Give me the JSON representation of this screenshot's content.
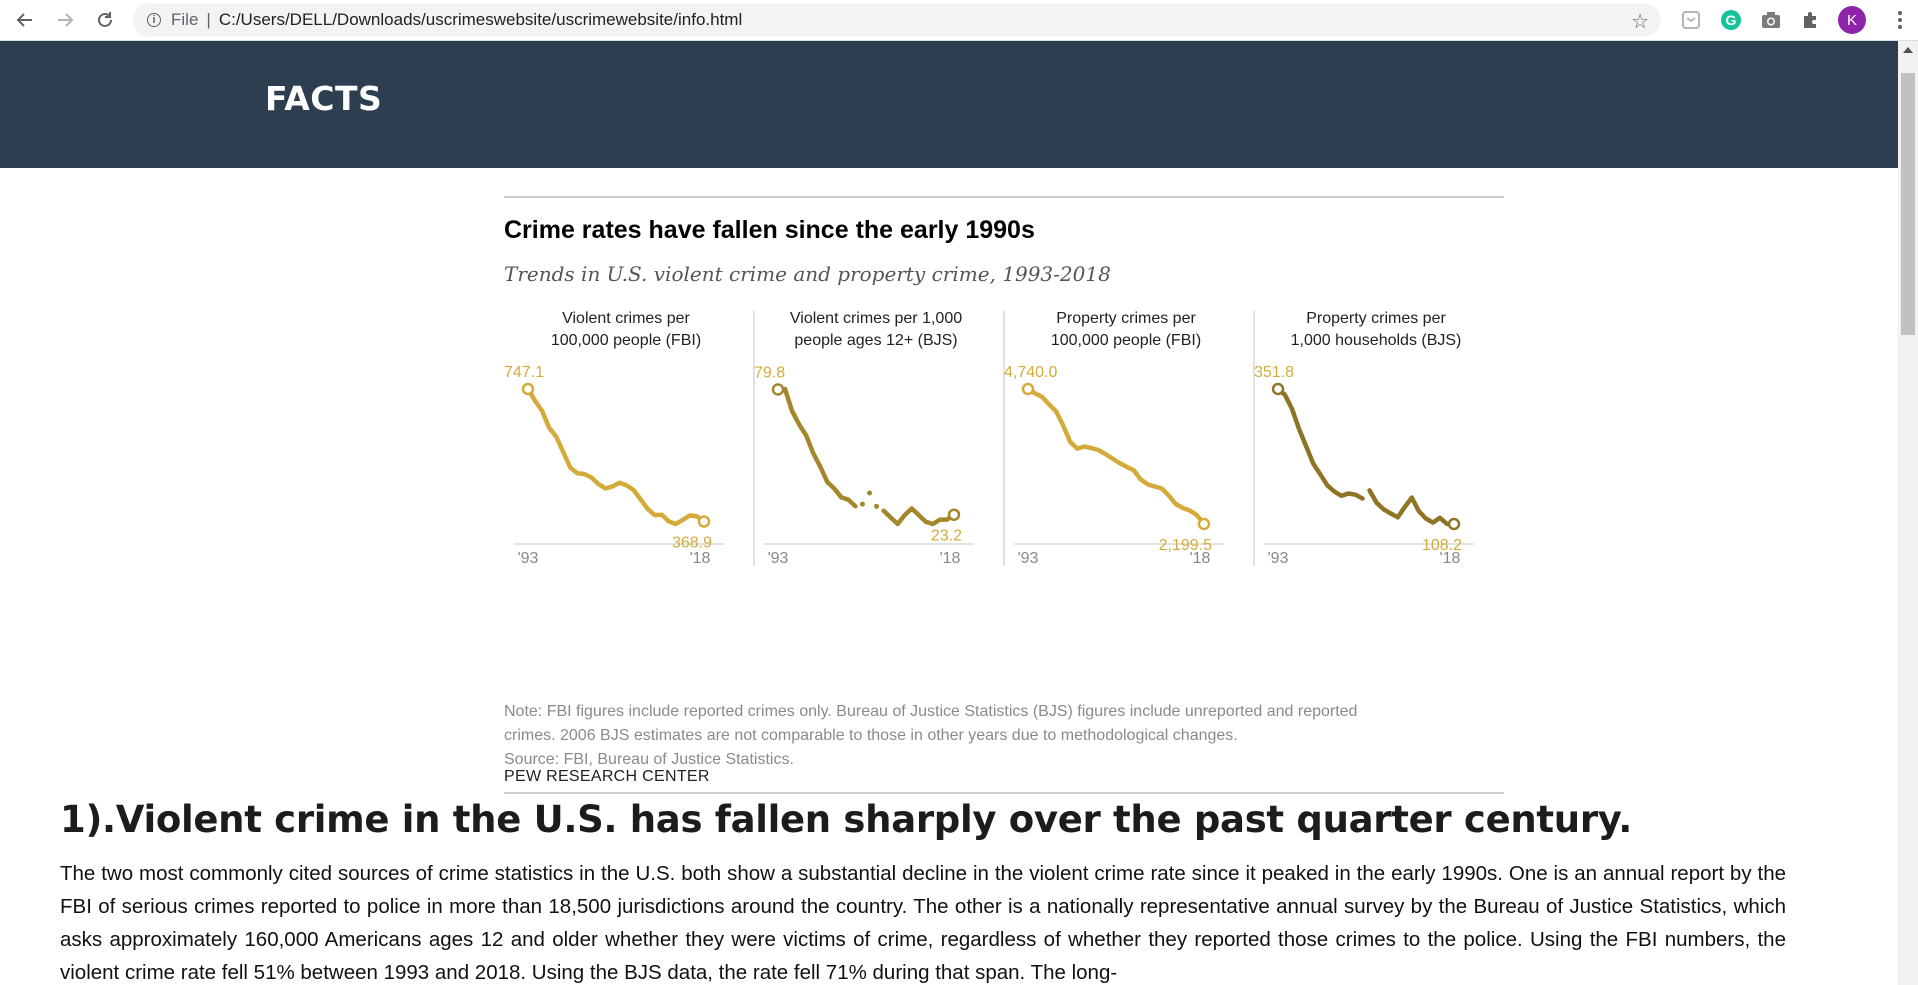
{
  "browser": {
    "scheme": "File",
    "url": "C:/Users/DELL/Downloads/uscrimeswebsite/uscrimewebsite/info.html",
    "profile_initial": "K"
  },
  "header": {
    "title": "FACTS"
  },
  "figure": {
    "title": "Crime rates have fallen since the early 1990s",
    "subtitle": "Trends in U.S. violent crime and property crime, 1993-2018",
    "note_line1": "Note: FBI figures include reported crimes only. Bureau of Justice Statistics (BJS) figures include unreported and reported",
    "note_line2": "crimes. 2006 BJS estimates are not comparable to those in other years due to methodological changes.",
    "source": "Source: FBI, Bureau of Justice Statistics.",
    "credit": "PEW RESEARCH CENTER"
  },
  "chart_data": [
    {
      "type": "line",
      "title_line1": "Violent crimes per",
      "title_line2": "100,000 people (FBI)",
      "x_start_label": "'93",
      "x_end_label": "'18",
      "start_label": "747.1",
      "end_label": "368.9",
      "color": "#d4ab3a",
      "x": [
        1993,
        1994,
        1995,
        1996,
        1997,
        1998,
        1999,
        2000,
        2001,
        2002,
        2003,
        2004,
        2005,
        2006,
        2007,
        2008,
        2009,
        2010,
        2011,
        2012,
        2013,
        2014,
        2015,
        2016,
        2017,
        2018
      ],
      "values": [
        747.1,
        713.6,
        684.5,
        636.6,
        611.0,
        567.6,
        523.0,
        506.5,
        504.5,
        494.4,
        475.8,
        463.2,
        469.0,
        479.3,
        471.8,
        458.6,
        431.9,
        404.5,
        387.1,
        387.8,
        369.1,
        361.6,
        373.7,
        386.3,
        383.4,
        368.9
      ]
    },
    {
      "type": "line",
      "title_line1": "Violent crimes per 1,000",
      "title_line2": "people ages 12+ (BJS)",
      "x_start_label": "'93",
      "x_end_label": "'18",
      "start_label": "79.8",
      "end_label": "23.2",
      "color": "#a4862b",
      "x": [
        1993,
        1994,
        1995,
        1996,
        1997,
        1998,
        1999,
        2000,
        2001,
        2002,
        2003,
        2004,
        2005,
        2006,
        2007,
        2008,
        2009,
        2010,
        2011,
        2012,
        2013,
        2014,
        2015,
        2016,
        2017,
        2018
      ],
      "values": [
        79.8,
        80.0,
        70.0,
        64.0,
        59.0,
        51.0,
        45.0,
        38.0,
        35.0,
        31.0,
        30.0,
        27.0,
        28.0,
        33.0,
        27.0,
        25.0,
        22.0,
        19.0,
        23.0,
        26.0,
        23.0,
        20.0,
        19.0,
        21.0,
        21.0,
        23.2
      ],
      "dotted_years": [
        2005,
        2006,
        2007
      ]
    },
    {
      "type": "line",
      "title_line1": "Property crimes per",
      "title_line2": "100,000 people (FBI)",
      "x_start_label": "'93",
      "x_end_label": "'18",
      "start_label": "4,740.0",
      "end_label": "2,199.5",
      "color": "#d4ab3a",
      "x": [
        1993,
        1994,
        1995,
        1996,
        1997,
        1998,
        1999,
        2000,
        2001,
        2002,
        2003,
        2004,
        2005,
        2006,
        2007,
        2008,
        2009,
        2010,
        2011,
        2012,
        2013,
        2014,
        2015,
        2016,
        2017,
        2018
      ],
      "values": [
        4740.0,
        4660.2,
        4590.5,
        4451.0,
        4316.3,
        4052.5,
        3743.6,
        3618.3,
        3658.1,
        3630.6,
        3591.2,
        3514.1,
        3431.5,
        3346.6,
        3276.4,
        3214.6,
        3041.3,
        2945.9,
        2905.4,
        2868.0,
        2733.6,
        2574.1,
        2500.5,
        2451.6,
        2362.9,
        2199.5
      ]
    },
    {
      "type": "line",
      "title_line1": "Property crimes per",
      "title_line2": "1,000 households (BJS)",
      "x_start_label": "'93",
      "x_end_label": "'18",
      "start_label": "351.8",
      "end_label": "108.2",
      "color": "#8f7426",
      "x": [
        1993,
        1994,
        1995,
        1996,
        1997,
        1998,
        1999,
        2000,
        2001,
        2002,
        2003,
        2004,
        2005,
        2006,
        2007,
        2008,
        2009,
        2010,
        2011,
        2012,
        2013,
        2014,
        2015,
        2016,
        2017,
        2018
      ],
      "values": [
        351.8,
        341.2,
        315.5,
        279.5,
        248.3,
        217.4,
        198.0,
        178.1,
        166.9,
        159.0,
        163.2,
        161.1,
        154.2,
        168.8,
        146.5,
        134.7,
        127.4,
        120.2,
        138.7,
        155.8,
        131.4,
        118.1,
        110.7,
        119.4,
        108.4,
        108.2
      ],
      "gap_after_year": 2005
    }
  ],
  "article": {
    "heading": "1).Violent crime in the U.S. has fallen sharply over the past quarter century.",
    "paragraph": "The two most commonly cited sources of crime statistics in the U.S. both show a substantial decline in the violent crime rate since it peaked in the early 1990s. One is an annual report by the FBI of serious crimes reported to police in more than 18,500 jurisdictions around the country. The other is a nationally representative annual survey by the Bureau of Justice Statistics, which asks approximately 160,000 Americans ages 12 and older whether they were victims of crime, regardless of whether they reported those crimes to the police. Using the FBI numbers, the violent crime rate fell 51% between 1993 and 2018. Using the BJS data, the rate fell 71% during that span. The long-"
  }
}
